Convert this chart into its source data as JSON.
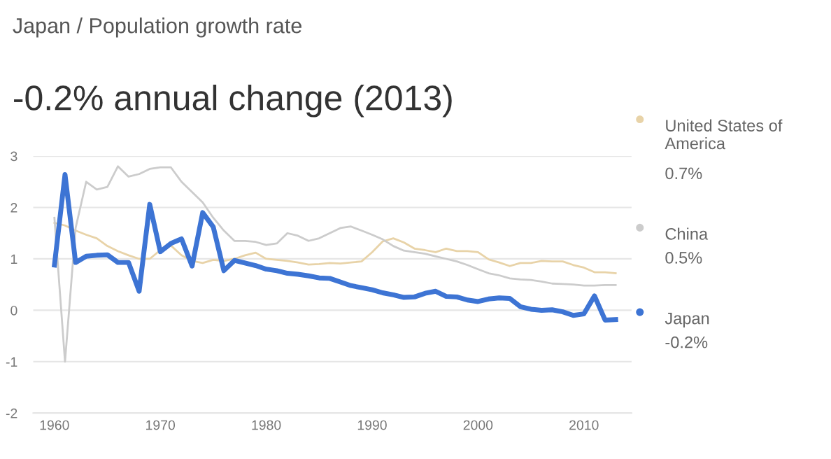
{
  "chart_data": {
    "type": "line",
    "title": "Japan / Population growth rate",
    "subtitle": "-0.2% annual change (2013)",
    "x": [
      1960,
      1961,
      1962,
      1963,
      1964,
      1965,
      1966,
      1967,
      1968,
      1969,
      1970,
      1971,
      1972,
      1973,
      1974,
      1975,
      1976,
      1977,
      1978,
      1979,
      1980,
      1981,
      1982,
      1983,
      1984,
      1985,
      1986,
      1987,
      1988,
      1989,
      1990,
      1991,
      1992,
      1993,
      1994,
      1995,
      1996,
      1997,
      1998,
      1999,
      2000,
      2001,
      2002,
      2003,
      2004,
      2005,
      2006,
      2007,
      2008,
      2009,
      2010,
      2011,
      2012,
      2013
    ],
    "series": [
      {
        "name": "United States of America",
        "color": "#e8d3a8",
        "values": [
          1.7,
          1.65,
          1.55,
          1.47,
          1.4,
          1.25,
          1.15,
          1.07,
          1.0,
          1.0,
          1.17,
          1.26,
          1.07,
          0.96,
          0.92,
          0.98,
          0.96,
          1.0,
          1.07,
          1.12,
          1.0,
          0.98,
          0.96,
          0.93,
          0.89,
          0.9,
          0.92,
          0.91,
          0.93,
          0.95,
          1.13,
          1.34,
          1.4,
          1.32,
          1.2,
          1.17,
          1.13,
          1.2,
          1.15,
          1.15,
          1.13,
          0.99,
          0.93,
          0.86,
          0.92,
          0.92,
          0.96,
          0.95,
          0.95,
          0.88,
          0.83,
          0.74,
          0.74,
          0.72
        ]
      },
      {
        "name": "China",
        "color": "#cccccc",
        "values": [
          1.8,
          -1.0,
          1.6,
          2.5,
          2.35,
          2.4,
          2.8,
          2.6,
          2.65,
          2.75,
          2.78,
          2.78,
          2.5,
          2.3,
          2.1,
          1.8,
          1.55,
          1.35,
          1.35,
          1.33,
          1.27,
          1.3,
          1.5,
          1.45,
          1.35,
          1.4,
          1.5,
          1.6,
          1.63,
          1.55,
          1.47,
          1.38,
          1.25,
          1.16,
          1.13,
          1.1,
          1.05,
          1.0,
          0.95,
          0.88,
          0.8,
          0.72,
          0.68,
          0.62,
          0.6,
          0.59,
          0.56,
          0.52,
          0.51,
          0.5,
          0.48,
          0.48,
          0.49,
          0.49
        ]
      },
      {
        "name": "Japan",
        "color": "#3d74d4",
        "values": [
          0.88,
          2.64,
          0.93,
          1.05,
          1.07,
          1.08,
          0.93,
          0.93,
          0.37,
          2.06,
          1.14,
          1.3,
          1.39,
          0.86,
          1.9,
          1.62,
          0.77,
          0.97,
          0.92,
          0.87,
          0.8,
          0.77,
          0.72,
          0.7,
          0.67,
          0.63,
          0.62,
          0.55,
          0.48,
          0.44,
          0.4,
          0.34,
          0.3,
          0.25,
          0.26,
          0.33,
          0.37,
          0.27,
          0.26,
          0.2,
          0.17,
          0.22,
          0.24,
          0.23,
          0.07,
          0.02,
          0.0,
          0.01,
          -0.03,
          -0.1,
          -0.07,
          0.28,
          -0.19,
          -0.18
        ]
      }
    ],
    "annotations": [
      "0.7%",
      "0.5%",
      "-0.2%"
    ],
    "xlim": [
      1958,
      2014.5
    ],
    "ylim": [
      -2,
      3
    ],
    "xticks": [
      1960,
      1970,
      1980,
      1990,
      2000,
      2010
    ],
    "yticks": [
      -2,
      -1,
      0,
      1,
      2,
      3
    ],
    "grid": "y",
    "legend": "right"
  }
}
